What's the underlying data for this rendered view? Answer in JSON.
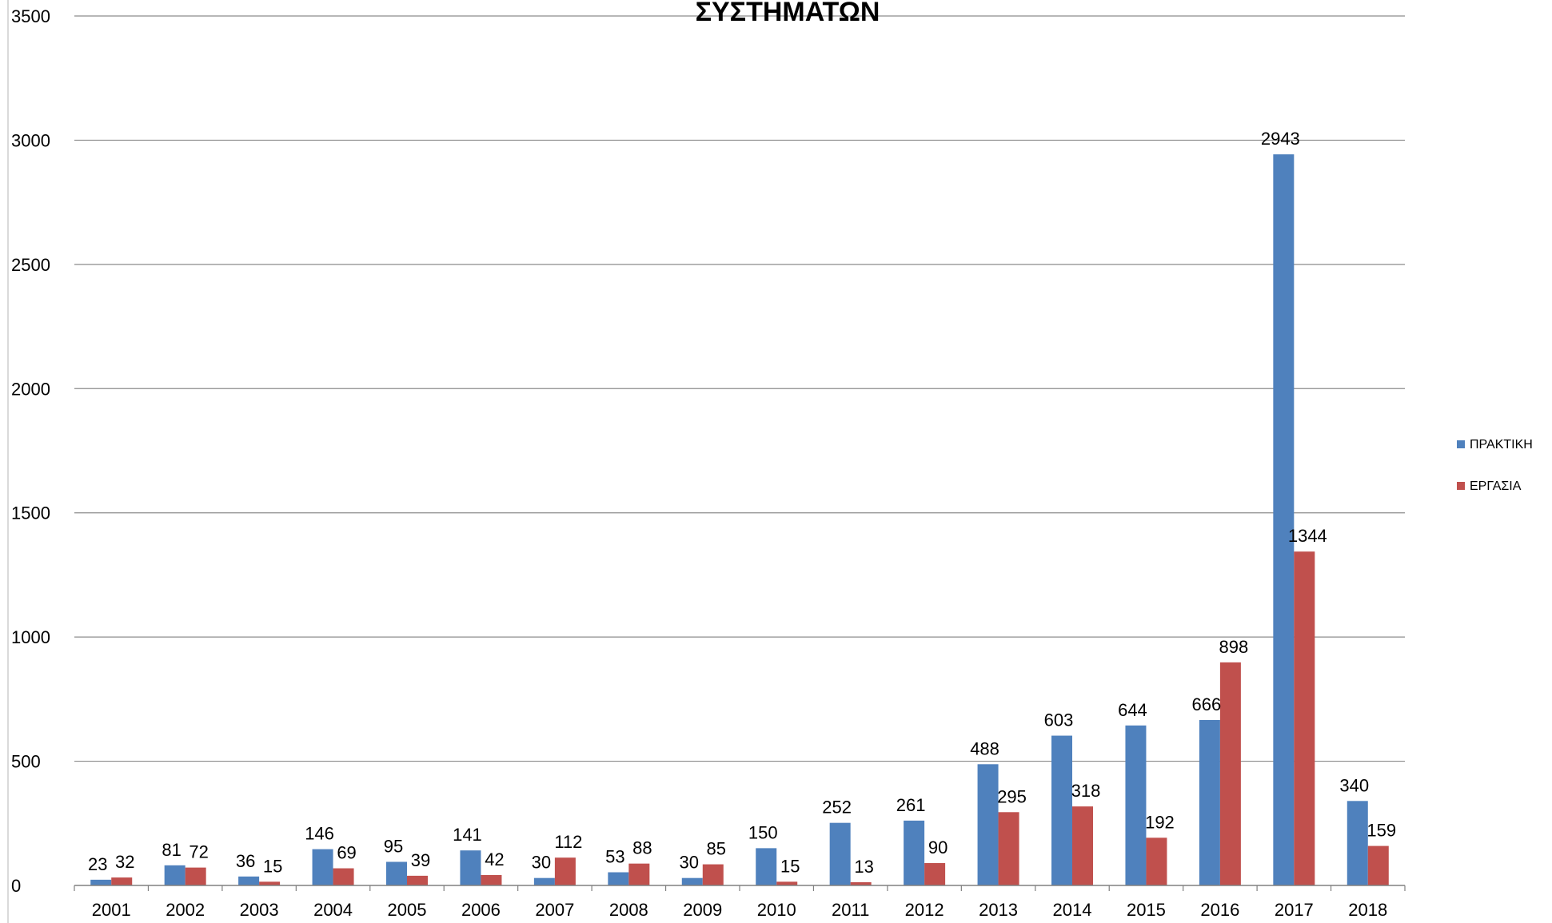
{
  "chart_data": {
    "type": "bar",
    "title": "ΣΥΣΤΗΜΑΤΩΝ",
    "categories": [
      "2001",
      "2002",
      "2003",
      "2004",
      "2005",
      "2006",
      "2007",
      "2008",
      "2009",
      "2010",
      "2011",
      "2012",
      "2013",
      "2014",
      "2015",
      "2016",
      "2017",
      "2018"
    ],
    "series": [
      {
        "name": "ΠΡΑΚΤΙΚΗ",
        "color": "#4F81BD",
        "values": [
          23,
          81,
          36,
          146,
          95,
          141,
          30,
          53,
          30,
          150,
          252,
          261,
          488,
          603,
          644,
          666,
          2943,
          340
        ]
      },
      {
        "name": "ΕΡΓΑΣΙΑ",
        "color": "#C0504D",
        "values": [
          32,
          72,
          15,
          69,
          39,
          42,
          112,
          88,
          85,
          15,
          13,
          90,
          295,
          318,
          192,
          898,
          1344,
          159
        ]
      }
    ],
    "ylim": [
      0,
      3500
    ],
    "yticks": [
      0,
      500,
      1000,
      1500,
      2000,
      2500,
      3000,
      3500
    ],
    "grid": true,
    "legend_position": "right"
  }
}
